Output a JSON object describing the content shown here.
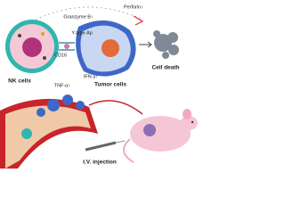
{
  "nodes": [
    {
      "label": "Perforin↑"
    },
    {
      "label": "Granzyme B↑"
    },
    {
      "label": "Y-type Ap"
    },
    {
      "label": "CD16"
    },
    {
      "label": "IFN-γ↑"
    },
    {
      "label": "TNF-α↑"
    },
    {
      "label": "NK cells"
    },
    {
      "label": "Tumor cells"
    },
    {
      "label": "Cell death"
    },
    {
      "label": "I.V. injection"
    }
  ]
}
